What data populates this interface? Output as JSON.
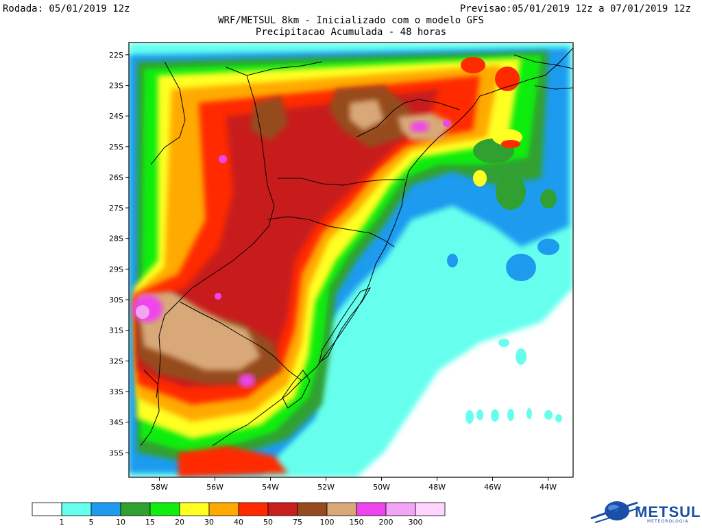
{
  "header": {
    "run_label": "Rodada: 05/01/2019 12z",
    "forecast_label": "Previsao:05/01/2019 12z a 07/01/2019 12z",
    "title": "WRF/METSUL 8km - Inicializado com o modelo GFS",
    "subtitle": "Precipitacao Acumulada - 48 horas"
  },
  "map": {
    "lat_ticks": [
      "22S",
      "23S",
      "24S",
      "25S",
      "26S",
      "27S",
      "28S",
      "29S",
      "30S",
      "31S",
      "32S",
      "33S",
      "34S",
      "35S"
    ],
    "lon_ticks": [
      "58W",
      "56W",
      "54W",
      "52W",
      "50W",
      "48W",
      "46W",
      "44W"
    ],
    "lat_range": [
      -35.8,
      -21.6
    ],
    "lon_range": [
      -59.1,
      -43.1
    ]
  },
  "legend": {
    "labels": [
      "1",
      "5",
      "10",
      "15",
      "20",
      "30",
      "40",
      "50",
      "75",
      "100",
      "150",
      "200",
      "300"
    ],
    "colors": [
      "#ffffff",
      "#66ffee",
      "#1e9bef",
      "#30a030",
      "#10ee10",
      "#ffff22",
      "#ffaa00",
      "#ff2a00",
      "#c81e1e",
      "#964b1e",
      "#d8a878",
      "#ee44ee",
      "#f4a4f4",
      "#ffd4ff"
    ]
  },
  "logo": {
    "name": "METSUL",
    "tagline": "METEOROLOGIA"
  }
}
